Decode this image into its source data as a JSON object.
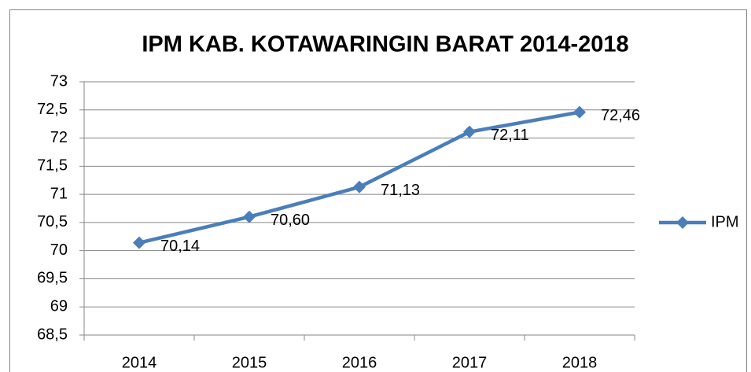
{
  "chart_data": {
    "type": "line",
    "title": "IPM KAB. KOTAWARINGIN BARAT 2014-2018",
    "categories": [
      "2014",
      "2015",
      "2016",
      "2017",
      "2018"
    ],
    "series": [
      {
        "name": "IPM",
        "color": "#4a7ebb",
        "values": [
          70.14,
          70.6,
          71.13,
          72.11,
          72.46
        ],
        "value_labels": [
          "70,14",
          "70,60",
          "71,13",
          "72,11",
          "72,46"
        ]
      }
    ],
    "ylim": [
      68.5,
      73
    ],
    "yticks": [
      {
        "value": 68.5,
        "label": "68,5"
      },
      69,
      {
        "value": 69.5,
        "label": "69,5"
      },
      70,
      {
        "value": 70.5,
        "label": "70,5"
      },
      71,
      {
        "value": 71.5,
        "label": "71,5"
      },
      72,
      {
        "value": 72.5,
        "label": "72,5"
      },
      73
    ],
    "grid": true,
    "legend": "right"
  }
}
